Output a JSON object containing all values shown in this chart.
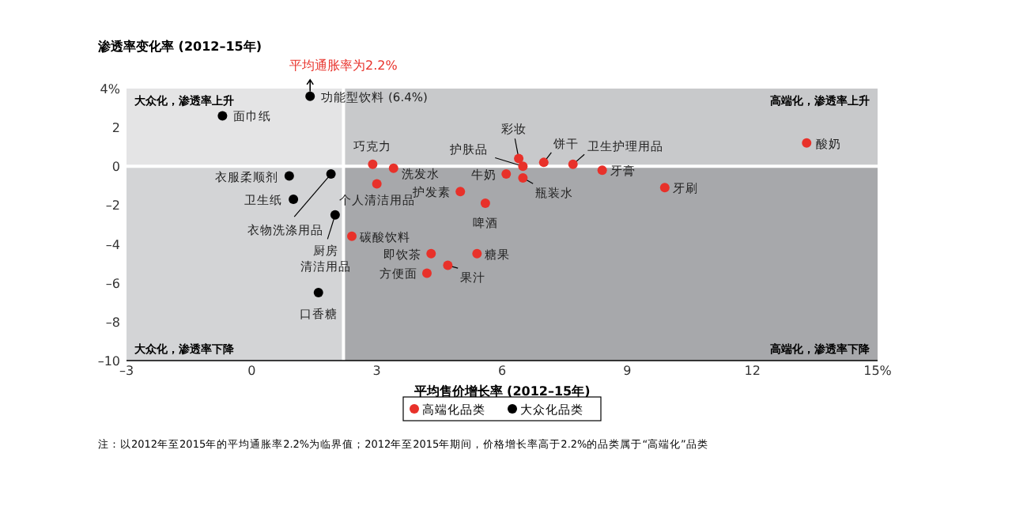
{
  "chart_data": {
    "type": "scatter",
    "title": "渗透率变化率 (2012–15年)",
    "xlabel": "平均售价增长率 (2012–15年)",
    "xlim": [
      -3,
      15
    ],
    "xticks": [
      {
        "value": -3,
        "label": "–3"
      },
      0,
      3,
      6,
      9,
      12,
      {
        "value": 15,
        "label": "15%"
      }
    ],
    "ylim": [
      -10,
      4
    ],
    "yticks": [
      {
        "value": -10,
        "label": "–10"
      },
      {
        "value": -8,
        "label": "–8"
      },
      {
        "value": -6,
        "label": "–6"
      },
      {
        "value": -4,
        "label": "–4"
      },
      {
        "value": -2,
        "label": "–2"
      },
      0,
      2,
      {
        "value": 4,
        "label": "4%"
      }
    ],
    "grid": false,
    "legend": "bottom",
    "marker": "circle",
    "bands": [
      {
        "axis": "x",
        "from": -3,
        "to": 2.2,
        "color": "#d3d4d6"
      },
      {
        "axis": "x",
        "from": 2.2,
        "to": 15,
        "color": "#a7a8ab"
      },
      {
        "axis": "y",
        "from": 0,
        "to": 4,
        "color": "#ffffff"
      }
    ],
    "ref_lines": [
      {
        "axis": "x",
        "value": 2.2,
        "label": "平均通胀率为2.2%",
        "color": "#ffffff"
      },
      {
        "axis": "y",
        "value": 0,
        "color": "#ffffff"
      }
    ],
    "series": [
      {
        "name": "高端化品类",
        "color": "#e8312a",
        "x": [
          2.9,
          3.4,
          3.0,
          5.0,
          5.6,
          6.4,
          6.5,
          7.0,
          7.7,
          6.1,
          6.5,
          8.4,
          9.9,
          13.3,
          2.4,
          4.3,
          5.4,
          4.7,
          4.2
        ],
        "values": [
          0.1,
          -0.1,
          -0.9,
          -1.3,
          -1.9,
          0.4,
          0.0,
          0.2,
          0.1,
          -0.4,
          -0.6,
          -0.2,
          -1.1,
          1.2,
          -3.6,
          -4.5,
          -4.5,
          -5.1,
          -5.5
        ],
        "value_labels": [
          "巧克力",
          "洗发水",
          "个人清洁用品",
          "护发素",
          "啤酒",
          "彩妆",
          "护肤品",
          "饼干",
          "卫生护理用品",
          "牛奶",
          "瓶装水",
          "牙膏",
          "牙刷",
          "酸奶",
          "碳酸饮料",
          "即饮茶",
          "糖果",
          "果汁",
          "方便面"
        ]
      },
      {
        "name": "大众化品类",
        "color": "#000000",
        "x": [
          1.4,
          -0.7,
          0.9,
          1.9,
          1.0,
          2.0,
          1.6
        ],
        "values": [
          3.6,
          2.6,
          -0.5,
          -0.4,
          -1.7,
          -2.5,
          -6.5
        ],
        "value_labels": [
          null,
          "面巾纸",
          "衣服柔顺剂",
          "衣物洗涤用品",
          "卫生纸",
          "厨房清洁用品",
          "口香糖"
        ]
      }
    ],
    "annotations": [
      {
        "text": "功能型饮料 (6.4%)",
        "x": 1.4,
        "y": 3.6
      },
      "大众化，渗透率上升",
      "高端化，渗透率上升",
      "大众化，渗透率下降",
      "高端化，渗透率下降",
      "注：以2012年至2015年的平均通胀率2.2%为临界值；2012年至2015年期间，价格增长率高于2.2%的品类属于“高端化”品类"
    ]
  }
}
